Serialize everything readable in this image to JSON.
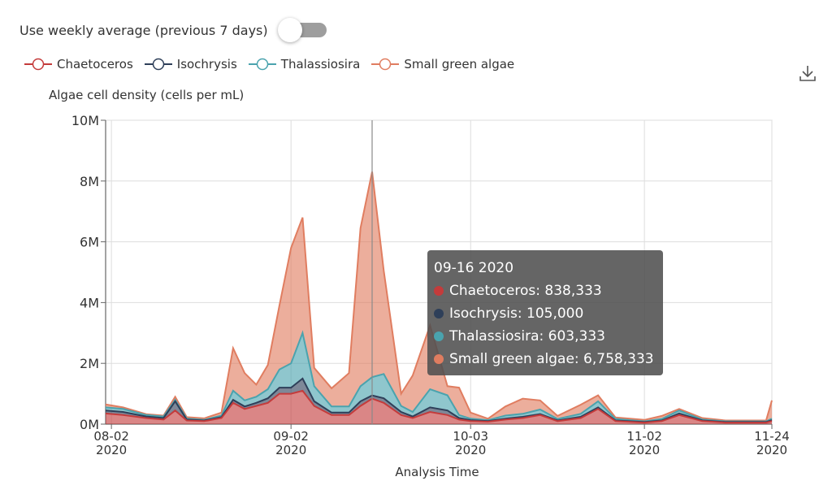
{
  "toggle": {
    "label": "Use weekly average (previous 7 days)",
    "on": false
  },
  "legend": [
    {
      "label": "Chaetoceros",
      "color": "#c43b3b"
    },
    {
      "label": "Isochrysis",
      "color": "#2e3f59"
    },
    {
      "label": "Thalassiosira",
      "color": "#4aa3ae"
    },
    {
      "label": "Small green algae",
      "color": "#e07d60"
    }
  ],
  "download_icon": "download-icon",
  "tooltip": {
    "date": "09-16 2020",
    "rows": [
      {
        "label": "Chaetoceros: 838,333",
        "color": "#c43b3b"
      },
      {
        "label": "Isochrysis: 105,000",
        "color": "#2e3f59"
      },
      {
        "label": "Thalassiosira: 603,333",
        "color": "#4aa3ae"
      },
      {
        "label": "Small green algae: 6,758,333",
        "color": "#e07d60"
      }
    ]
  },
  "chart_data": {
    "type": "area",
    "stacked": true,
    "ylabel": "Algae cell density (cells per mL)",
    "xlabel": "Analysis Time",
    "ylim": [
      0,
      10000000
    ],
    "xlim": [
      "2020-08-01",
      "2020-11-24"
    ],
    "y_ticks": [
      "0M",
      "2M",
      "4M",
      "6M",
      "8M",
      "10M"
    ],
    "x_ticks": [
      {
        "date": "2020-08-02",
        "label": "08-02",
        "sub": "2020"
      },
      {
        "date": "2020-09-02",
        "label": "09-02",
        "sub": "2020"
      },
      {
        "date": "2020-10-03",
        "label": "10-03",
        "sub": "2020"
      },
      {
        "date": "2020-11-02",
        "label": "11-02",
        "sub": "2020"
      },
      {
        "date": "2020-11-24",
        "label": "11-24",
        "sub": "2020"
      }
    ],
    "grid": true,
    "highlight_date": "2020-09-16",
    "x": [
      "2020-08-01",
      "2020-08-04",
      "2020-08-08",
      "2020-08-11",
      "2020-08-13",
      "2020-08-15",
      "2020-08-18",
      "2020-08-21",
      "2020-08-23",
      "2020-08-25",
      "2020-08-27",
      "2020-08-29",
      "2020-08-31",
      "2020-09-02",
      "2020-09-04",
      "2020-09-06",
      "2020-09-09",
      "2020-09-12",
      "2020-09-14",
      "2020-09-16",
      "2020-09-18",
      "2020-09-21",
      "2020-09-23",
      "2020-09-26",
      "2020-09-29",
      "2020-10-01",
      "2020-10-03",
      "2020-10-06",
      "2020-10-09",
      "2020-10-12",
      "2020-10-15",
      "2020-10-18",
      "2020-10-22",
      "2020-10-25",
      "2020-10-28",
      "2020-11-02",
      "2020-11-05",
      "2020-11-08",
      "2020-11-12",
      "2020-11-16",
      "2020-11-20",
      "2020-11-23",
      "2020-11-24"
    ],
    "series": [
      {
        "name": "Chaetoceros",
        "color": "#c43b3b",
        "values": [
          350000,
          300000,
          200000,
          150000,
          450000,
          120000,
          100000,
          200000,
          700000,
          500000,
          600000,
          700000,
          1000000,
          1000000,
          1100000,
          600000,
          300000,
          300000,
          600000,
          838333,
          700000,
          300000,
          200000,
          400000,
          300000,
          150000,
          100000,
          80000,
          150000,
          200000,
          300000,
          100000,
          200000,
          500000,
          100000,
          50000,
          100000,
          300000,
          100000,
          50000,
          50000,
          50000,
          100000
        ]
      },
      {
        "name": "Isochrysis",
        "color": "#2e3f59",
        "values": [
          100000,
          100000,
          50000,
          50000,
          300000,
          30000,
          20000,
          30000,
          100000,
          80000,
          100000,
          150000,
          200000,
          200000,
          400000,
          150000,
          80000,
          80000,
          150000,
          105000,
          150000,
          100000,
          50000,
          150000,
          150000,
          50000,
          30000,
          20000,
          30000,
          40000,
          30000,
          20000,
          40000,
          50000,
          20000,
          20000,
          20000,
          50000,
          20000,
          20000,
          20000,
          20000,
          30000
        ]
      },
      {
        "name": "Thalassiosira",
        "color": "#4aa3ae",
        "values": [
          100000,
          100000,
          50000,
          50000,
          50000,
          30000,
          20000,
          50000,
          300000,
          200000,
          200000,
          300000,
          600000,
          800000,
          1500000,
          500000,
          200000,
          200000,
          500000,
          603333,
          800000,
          200000,
          150000,
          600000,
          500000,
          100000,
          50000,
          30000,
          100000,
          100000,
          150000,
          50000,
          100000,
          200000,
          50000,
          20000,
          50000,
          100000,
          30000,
          20000,
          20000,
          20000,
          50000
        ]
      },
      {
        "name": "Small green algae",
        "color": "#e07d60",
        "values": [
          100000,
          50000,
          30000,
          30000,
          100000,
          50000,
          50000,
          100000,
          1400000,
          900000,
          400000,
          800000,
          2100000,
          3800000,
          3800000,
          600000,
          600000,
          1100000,
          5200000,
          6758333,
          3400000,
          400000,
          1200000,
          2100000,
          300000,
          900000,
          200000,
          50000,
          300000,
          500000,
          300000,
          100000,
          300000,
          200000,
          50000,
          50000,
          100000,
          50000,
          50000,
          30000,
          30000,
          30000,
          600000
        ]
      }
    ]
  }
}
